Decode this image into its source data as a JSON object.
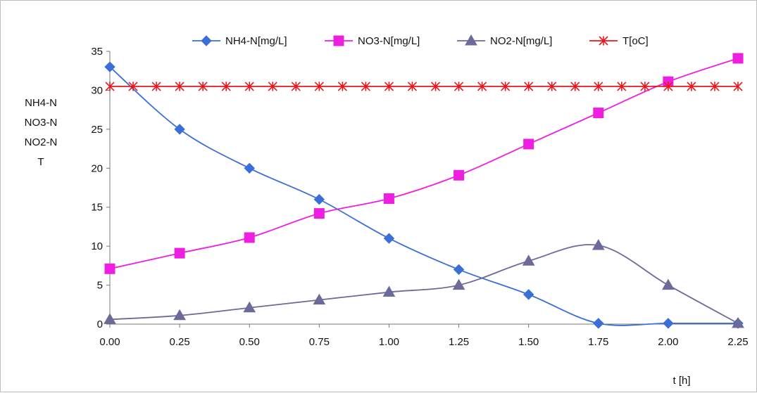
{
  "chart_data": {
    "type": "line",
    "title": "",
    "xlabel": "t [h]",
    "ylabel_lines": [
      "NH4-N",
      "NO3-N",
      "NO2-N",
      "T"
    ],
    "x": [
      0.0,
      0.25,
      0.5,
      0.75,
      1.0,
      1.25,
      1.5,
      1.75,
      2.0,
      2.25
    ],
    "x_tick_labels": [
      "0.00",
      "0.25",
      "0.50",
      "0.75",
      "1.00",
      "1.25",
      "1.50",
      "1.75",
      "2.00",
      "2.25"
    ],
    "ylim": [
      0,
      35
    ],
    "y_ticks": [
      0,
      5,
      10,
      15,
      20,
      25,
      30,
      35
    ],
    "grid": false,
    "legend_position": "top",
    "series": [
      {
        "name": "NH4-N[mg/L]",
        "color": "#3a6fd8",
        "marker": "diamond",
        "values": [
          33,
          25,
          20,
          16,
          11,
          7,
          3.8,
          0.1,
          0.1,
          0.1
        ]
      },
      {
        "name": "NO3-N[mg/L]",
        "color": "#ee1fe0",
        "marker": "square",
        "values": [
          7.1,
          9.1,
          11.1,
          14.2,
          16.1,
          19.1,
          23.1,
          27.1,
          31.1,
          34.1
        ]
      },
      {
        "name": "NO2-N[mg/L]",
        "color": "#6b6a98",
        "marker": "triangle",
        "values": [
          0.6,
          1.1,
          2.1,
          3.1,
          4.1,
          5.0,
          8.1,
          10.1,
          5.0,
          0.1
        ]
      },
      {
        "name": "T[oC]",
        "color": "#e8161c",
        "marker": "asterisk",
        "x": [
          0.0,
          0.0833,
          0.1667,
          0.25,
          0.3333,
          0.4167,
          0.5,
          0.5833,
          0.6667,
          0.75,
          0.8333,
          0.9167,
          1.0,
          1.0833,
          1.1667,
          1.25,
          1.3333,
          1.4167,
          1.5,
          1.5833,
          1.6667,
          1.75,
          1.8333,
          1.9167,
          2.0,
          2.0833,
          2.1667,
          2.25
        ],
        "values": [
          30.5,
          30.5,
          30.5,
          30.5,
          30.5,
          30.5,
          30.5,
          30.5,
          30.5,
          30.5,
          30.5,
          30.5,
          30.5,
          30.5,
          30.5,
          30.5,
          30.5,
          30.5,
          30.5,
          30.5,
          30.5,
          30.5,
          30.5,
          30.5,
          30.5,
          30.5,
          30.5,
          30.5
        ]
      }
    ]
  }
}
